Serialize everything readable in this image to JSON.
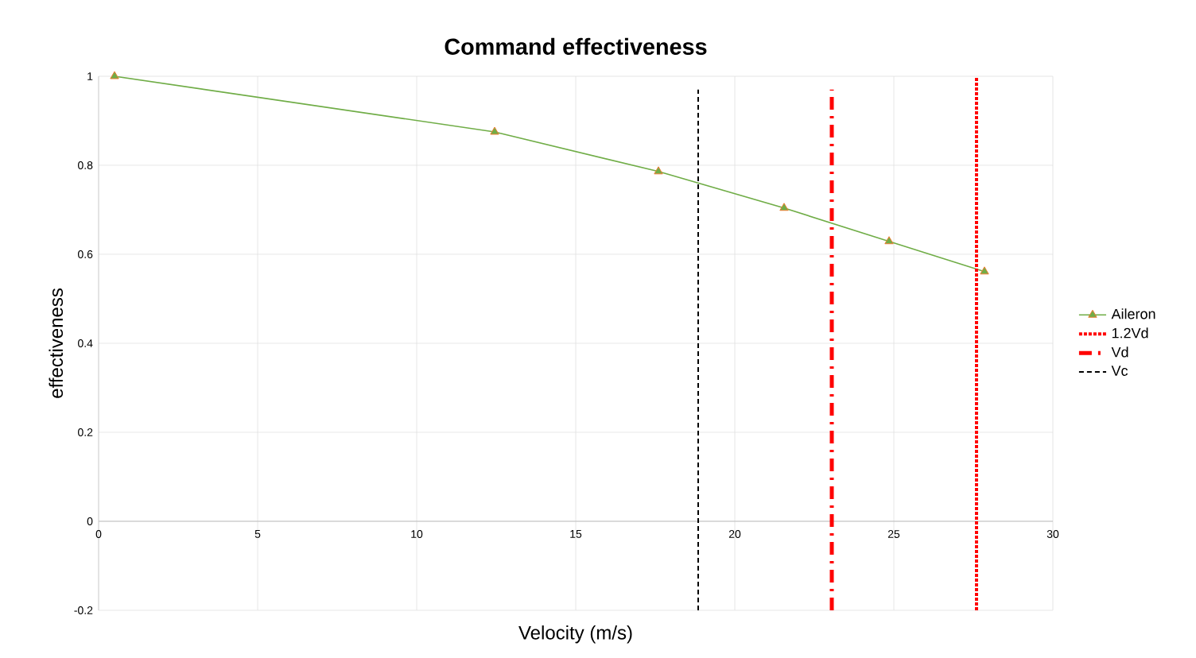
{
  "chart_data": {
    "type": "line",
    "title": "Command effectiveness",
    "xlabel": "Velocity (m/s)",
    "ylabel": "effectiveness",
    "xlim": [
      0,
      30
    ],
    "xticks": [
      0,
      5,
      10,
      15,
      20,
      25,
      30
    ],
    "ylim": [
      -0.2,
      1
    ],
    "yticks": [
      -0.2,
      0,
      0.2,
      0.4,
      0.6,
      0.8,
      1
    ],
    "grid": true,
    "legend": "right",
    "series": [
      {
        "name": "Aileron",
        "color": "#70ad47",
        "marker": "triangle",
        "line_style": "solid",
        "x": [
          0.5,
          12.45,
          17.6,
          21.55,
          24.85,
          27.85
        ],
        "values": [
          1.0,
          0.875,
          0.786,
          0.704,
          0.629,
          0.561
        ]
      },
      {
        "name": "1.2Vd",
        "color": "#ff0000",
        "marker": "none",
        "line_style": "dotted",
        "x": [
          27.6,
          27.6
        ],
        "values": [
          -0.2,
          1
        ]
      },
      {
        "name": "Vd",
        "color": "#ff0000",
        "marker": "none",
        "line_style": "dashdot",
        "x": [
          23.05,
          23.05
        ],
        "values": [
          -0.2,
          0.97
        ]
      },
      {
        "name": "Vc",
        "color": "#000000",
        "marker": "none",
        "line_style": "dashed",
        "x": [
          18.85,
          18.85
        ],
        "values": [
          -0.2,
          0.97
        ]
      }
    ]
  }
}
